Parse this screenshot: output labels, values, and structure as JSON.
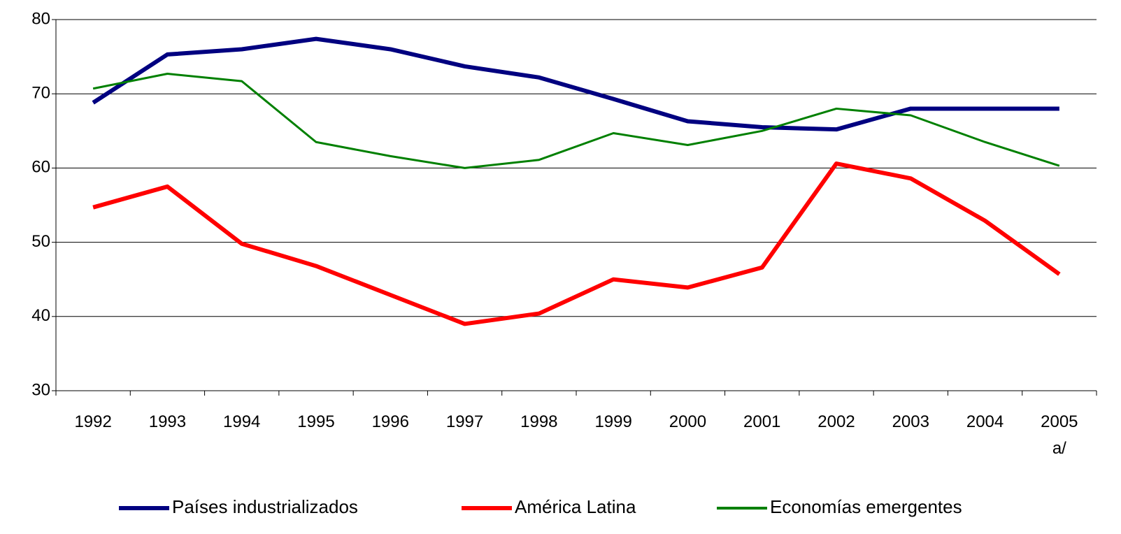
{
  "chart_data": {
    "type": "line",
    "categories": [
      "1992",
      "1993",
      "1994",
      "1995",
      "1996",
      "1997",
      "1998",
      "1999",
      "2000",
      "2001",
      "2002",
      "2003",
      "2004",
      "2005 a/"
    ],
    "series": [
      {
        "name": "Países industrializados",
        "color": "#000080",
        "values": [
          68.8,
          75.3,
          76.0,
          77.4,
          76.0,
          73.7,
          72.2,
          69.3,
          66.3,
          65.5,
          65.2,
          68.0,
          68.0,
          68.0
        ]
      },
      {
        "name": "América Latina",
        "color": "#ff0000",
        "values": [
          54.7,
          57.5,
          49.8,
          46.8,
          42.9,
          39.0,
          40.4,
          45.0,
          43.9,
          46.6,
          60.6,
          58.6,
          52.9,
          45.7
        ]
      },
      {
        "name": "Economías emergentes",
        "color": "#008000",
        "values": [
          70.7,
          72.7,
          71.7,
          63.5,
          61.6,
          60.0,
          61.1,
          64.7,
          63.1,
          65.0,
          68.0,
          67.1,
          63.5,
          60.3
        ]
      }
    ],
    "ylim": [
      30,
      80
    ],
    "yticks": [
      30,
      40,
      50,
      60,
      70,
      80
    ],
    "grid": true,
    "legend": "bottom"
  }
}
